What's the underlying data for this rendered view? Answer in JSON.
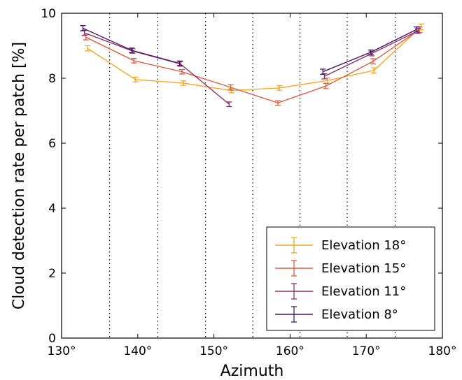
{
  "chart_data": {
    "type": "line",
    "xlabel": "Azimuth",
    "ylabel": "Cloud detection rate per patch [%]",
    "xlim": [
      130,
      180
    ],
    "ylim": [
      0,
      10
    ],
    "x_ticks": [
      130,
      140,
      150,
      160,
      170,
      180
    ],
    "x_tick_labels": [
      "130°",
      "140°",
      "150°",
      "160°",
      "170°",
      "180°"
    ],
    "y_ticks": [
      0,
      2,
      4,
      6,
      8,
      10
    ],
    "y_tick_labels": [
      "0",
      "2",
      "4",
      "6",
      "8",
      "10"
    ],
    "vlines": [
      136.3,
      142.6,
      148.9,
      155.1,
      161.3,
      167.5,
      173.8
    ],
    "legend_position": "lower-right",
    "series": [
      {
        "name": "Elevation 18°",
        "color": "#f5a623",
        "segments": [
          [
            [
              133.4,
              8.92,
              0.08
            ],
            [
              139.7,
              7.96,
              0.07
            ],
            [
              146.0,
              7.85,
              0.07
            ],
            [
              152.3,
              7.62,
              0.07
            ],
            [
              158.6,
              7.7,
              0.07
            ],
            [
              164.9,
              7.93,
              0.08
            ],
            [
              171.0,
              8.24,
              0.08
            ],
            [
              177.2,
              9.58,
              0.09
            ]
          ]
        ]
      },
      {
        "name": "Elevation 15°",
        "color": "#e05c40",
        "segments": [
          [
            [
              133.2,
              9.26,
              0.08
            ],
            [
              139.5,
              8.54,
              0.07
            ],
            [
              145.8,
              8.2,
              0.07
            ],
            [
              152.2,
              7.72,
              0.08
            ],
            [
              158.4,
              7.24,
              0.07
            ],
            [
              164.7,
              7.76,
              0.08
            ],
            [
              170.9,
              8.52,
              0.08
            ],
            [
              177.0,
              9.5,
              0.09
            ]
          ]
        ]
      },
      {
        "name": "Elevation 11°",
        "color": "#93306a",
        "segments": [
          [
            [
              133.0,
              9.4,
              0.08
            ],
            [
              139.3,
              8.84,
              0.07
            ],
            [
              145.6,
              8.44,
              0.07
            ],
            [
              152.0,
              7.2,
              0.07
            ]
          ],
          [
            [
              164.5,
              8.06,
              0.08
            ],
            [
              170.7,
              8.76,
              0.07
            ],
            [
              176.8,
              9.46,
              0.08
            ]
          ]
        ]
      },
      {
        "name": "Elevation 8°",
        "color": "#46196b",
        "segments": [
          [
            [
              132.8,
              9.54,
              0.08
            ],
            [
              139.2,
              8.86,
              0.07
            ],
            [
              145.5,
              8.46,
              0.07
            ]
          ],
          [
            [
              164.3,
              8.2,
              0.08
            ],
            [
              170.6,
              8.8,
              0.07
            ],
            [
              176.6,
              9.5,
              0.08
            ]
          ]
        ]
      }
    ]
  }
}
